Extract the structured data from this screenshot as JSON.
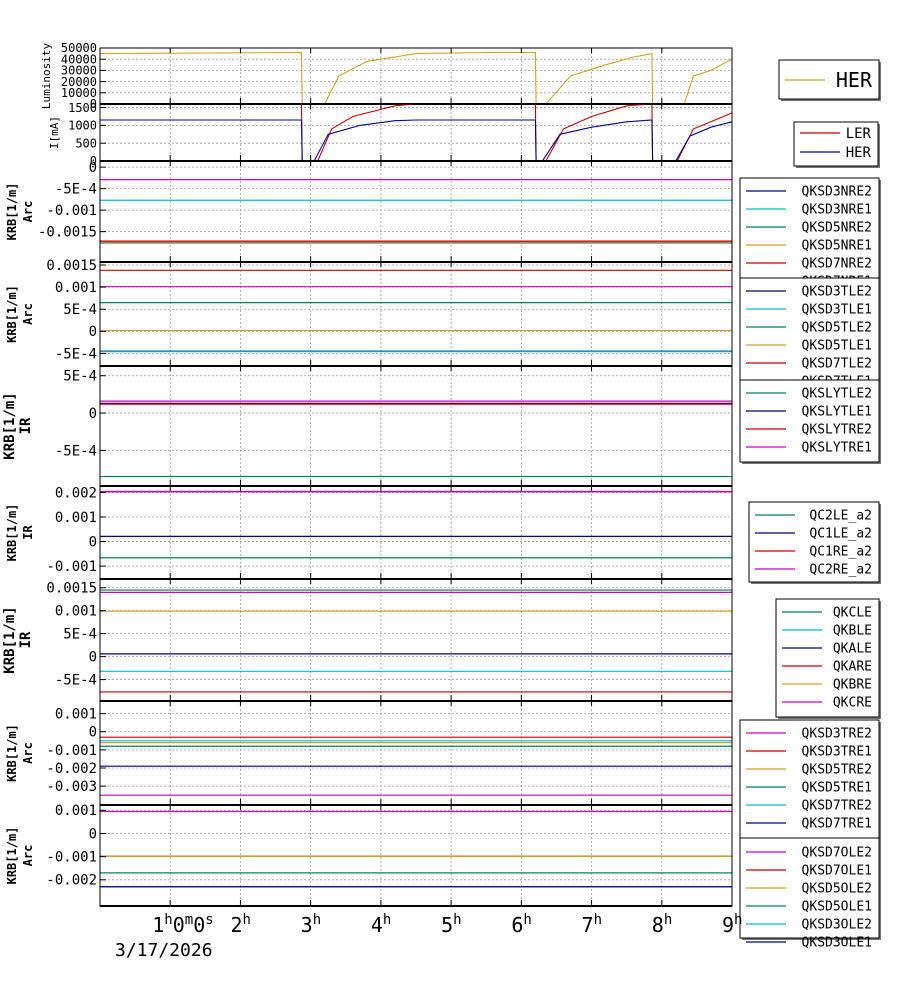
{
  "chart_data": [
    {
      "type": "line",
      "ylabel": [
        "Luminosity"
      ],
      "ylim": [
        0,
        50000
      ],
      "yticks": [
        "50000",
        "40000",
        "30000",
        "20000",
        "10000",
        "0"
      ],
      "yticks_values": [
        50000,
        40000,
        30000,
        20000,
        10000,
        0
      ],
      "legend": "right",
      "series": [
        {
          "name": "HER",
          "color": "#d4a017",
          "points": [
            [
              0,
              45000
            ],
            [
              2.87,
              46000
            ],
            [
              2.88,
              0
            ],
            [
              3.2,
              0
            ],
            [
              3.4,
              25000
            ],
            [
              3.8,
              38000
            ],
            [
              4.5,
              45000
            ],
            [
              5.5,
              46000
            ],
            [
              6.2,
              46000
            ],
            [
              6.21,
              0
            ],
            [
              6.35,
              0
            ],
            [
              6.7,
              25000
            ],
            [
              7.2,
              35000
            ],
            [
              7.6,
              42000
            ],
            [
              7.86,
              45000
            ],
            [
              7.87,
              0
            ],
            [
              8.32,
              0
            ],
            [
              8.45,
              25000
            ],
            [
              8.7,
              30000
            ],
            [
              9,
              40000
            ]
          ]
        }
      ]
    },
    {
      "type": "line",
      "ylabel": [
        "I[mA]"
      ],
      "ylim": [
        0,
        1600
      ],
      "yticks": [
        "1500",
        "1000",
        "500",
        "0"
      ],
      "yticks_values": [
        1500,
        1000,
        500,
        0
      ],
      "legend": "right",
      "series": [
        {
          "name": "LER",
          "color": "#cc0000",
          "points": [
            [
              0,
              1600
            ],
            [
              2.87,
              1600
            ],
            [
              2.88,
              0
            ],
            [
              3.1,
              0
            ],
            [
              3.3,
              900
            ],
            [
              3.6,
              1250
            ],
            [
              4.2,
              1550
            ],
            [
              4.5,
              1600
            ],
            [
              6.2,
              1600
            ],
            [
              6.21,
              0
            ],
            [
              6.35,
              0
            ],
            [
              6.6,
              900
            ],
            [
              7.0,
              1250
            ],
            [
              7.5,
              1550
            ],
            [
              7.86,
              1600
            ],
            [
              7.87,
              0
            ],
            [
              8.22,
              0
            ],
            [
              8.45,
              900
            ],
            [
              8.7,
              1100
            ],
            [
              9,
              1350
            ]
          ]
        },
        {
          "name": "HER",
          "color": "#000099",
          "points": [
            [
              0,
              1150
            ],
            [
              2.87,
              1150
            ],
            [
              2.88,
              0
            ],
            [
              3.05,
              0
            ],
            [
              3.25,
              750
            ],
            [
              3.7,
              1000
            ],
            [
              4.2,
              1130
            ],
            [
              4.5,
              1150
            ],
            [
              6.2,
              1150
            ],
            [
              6.21,
              0
            ],
            [
              6.3,
              0
            ],
            [
              6.55,
              750
            ],
            [
              7.0,
              950
            ],
            [
              7.5,
              1100
            ],
            [
              7.86,
              1150
            ],
            [
              7.87,
              0
            ],
            [
              8.2,
              0
            ],
            [
              8.4,
              700
            ],
            [
              8.7,
              950
            ],
            [
              9,
              1100
            ]
          ]
        }
      ]
    },
    {
      "type": "line",
      "ylabel": [
        "KRB[1/m]",
        "Arc"
      ],
      "ylim": [
        -0.00195,
        5e-05
      ],
      "yticks": [
        "0",
        "-5E-4",
        "-0.001",
        "-0.0015"
      ],
      "yticks_values": [
        0,
        -0.0005,
        -0.001,
        -0.0015
      ],
      "legend": "right",
      "series": [
        {
          "name": "QKSD3NRE2",
          "color": "#000080",
          "value": -0.00176
        },
        {
          "name": "QKSD3NRE1",
          "color": "#00bcd4",
          "value": -0.00077
        },
        {
          "name": "QKSD5NRE2",
          "color": "#008060",
          "value": -0.00175
        },
        {
          "name": "QKSD5NRE1",
          "color": "#d4a017",
          "value": -0.00174
        },
        {
          "name": "QKSD7NRE2",
          "color": "#cc0000",
          "value": -0.00172
        },
        {
          "name": "QKSD7NRE1",
          "color": "#cc00cc",
          "value": -0.00029
        }
      ]
    },
    {
      "type": "line",
      "ylabel": [
        "KRB[1/m]",
        "Arc"
      ],
      "ylim": [
        -0.00058,
        0.0015
      ],
      "yticks": [
        "0.0015",
        "0.001",
        "5E-4",
        "0",
        "-5E-4"
      ],
      "yticks_values": [
        0.0015,
        0.001,
        0.0005,
        0,
        -0.0005
      ],
      "legend": "right",
      "series": [
        {
          "name": "QKSD3TLE2",
          "color": "#000080",
          "value": -0.00045
        },
        {
          "name": "QKSD3TLE1",
          "color": "#00bcd4",
          "value": -0.00046
        },
        {
          "name": "QKSD5TLE2",
          "color": "#008060",
          "value": 0.00065
        },
        {
          "name": "QKSD5TLE1",
          "color": "#d4a017",
          "value": 2e-05
        },
        {
          "name": "QKSD7TLE2",
          "color": "#cc0000",
          "value": 0.00138
        },
        {
          "name": "QKSD7TLE1",
          "color": "#cc00cc",
          "value": 0.00101
        }
      ]
    },
    {
      "type": "line",
      "ylabel": [
        "KRB[1/m]",
        "IR"
      ],
      "ylim": [
        -0.00087,
        0.00055
      ],
      "yticks": [
        "5E-4",
        "0",
        "-5E-4"
      ],
      "yticks_values": [
        0.0005,
        0,
        -0.0005
      ],
      "legend": "right",
      "series": [
        {
          "name": "QKSLYTLE2",
          "color": "#008060",
          "value": -0.00085
        },
        {
          "name": "QKSLYTLE1",
          "color": "#000080",
          "value": 0.00013
        },
        {
          "name": "QKSLYTRE2",
          "color": "#cc0000",
          "value": 0.00012
        },
        {
          "name": "QKSLYTRE1",
          "color": "#cc00cc",
          "value": 0.00016
        }
      ]
    },
    {
      "type": "line",
      "ylabel": [
        "KRB[1/m]",
        "IR"
      ],
      "ylim": [
        -0.0012,
        0.0021
      ],
      "yticks": [
        "0.002",
        "0.001",
        "0",
        "-0.001"
      ],
      "yticks_values": [
        0.002,
        0.001,
        0,
        -0.001
      ],
      "legend": "right",
      "series": [
        {
          "name": "QC2LE_a2",
          "color": "#008060",
          "value": -0.00066
        },
        {
          "name": "QC1LE_a2",
          "color": "#000080",
          "value": 0.00021
        },
        {
          "name": "QC1RE_a2",
          "color": "#cc0000",
          "value": 0.00204
        },
        {
          "name": "QC2RE_a2",
          "color": "#cc00cc",
          "value": 0.00203
        }
      ]
    },
    {
      "type": "line",
      "ylabel": [
        "KRB[1/m]",
        "IR"
      ],
      "ylim": [
        -0.00088,
        0.00156
      ],
      "yticks": [
        "0.0015",
        "0.001",
        "5E-4",
        "0",
        "-5E-4"
      ],
      "yticks_values": [
        0.0015,
        0.001,
        0.0005,
        0,
        -0.0005
      ],
      "legend": "right",
      "series": [
        {
          "name": "QKCLE",
          "color": "#008060",
          "value": 0.00145
        },
        {
          "name": "QKBLE",
          "color": "#00bcd4",
          "value": -0.00032
        },
        {
          "name": "QKALE",
          "color": "#000080",
          "value": 6e-05
        },
        {
          "name": "QKARE",
          "color": "#cc0000",
          "value": -0.00077
        },
        {
          "name": "QKBRE",
          "color": "#d4a017",
          "value": 0.00099
        },
        {
          "name": "QKCRE",
          "color": "#cc00cc",
          "value": 0.0014
        }
      ]
    },
    {
      "type": "line",
      "ylabel": [
        "KRB[1/m]",
        "Arc"
      ],
      "ylim": [
        -0.0036,
        0.0012
      ],
      "yticks": [
        "0.001",
        "0",
        "-0.001",
        "-0.002",
        "-0.003"
      ],
      "yticks_values": [
        0.001,
        0,
        -0.001,
        -0.002,
        -0.003
      ],
      "legend": "right",
      "series": [
        {
          "name": "QKSD3TRE2",
          "color": "#cc00cc",
          "value": -0.0035
        },
        {
          "name": "QKSD3TRE1",
          "color": "#cc0000",
          "value": -0.0003
        },
        {
          "name": "QKSD5TRE2",
          "color": "#d4a017",
          "value": -0.0006
        },
        {
          "name": "QKSD5TRE1",
          "color": "#008060",
          "value": -0.0008
        },
        {
          "name": "QKSD7TRE2",
          "color": "#00bcd4",
          "value": -0.0005
        },
        {
          "name": "QKSD7TRE1",
          "color": "#000080",
          "value": -0.0019
        }
      ]
    },
    {
      "type": "line",
      "ylabel": [
        "KRB[1/m]",
        "Arc"
      ],
      "ylim": [
        -0.0027,
        0.0011
      ],
      "yticks": [
        "0.001",
        "0",
        "-0.001",
        "-0.002"
      ],
      "yticks_values": [
        0.001,
        0,
        -0.001,
        -0.002
      ],
      "legend": "right",
      "series": [
        {
          "name": "QKSD7OLE2",
          "color": "#cc00cc",
          "value": 0.00095
        },
        {
          "name": "QKSD7OLE1",
          "color": "#cc0000",
          "value": -0.00098
        },
        {
          "name": "QKSD5OLE2",
          "color": "#d4a017",
          "value": -0.00099
        },
        {
          "name": "QKSD5OLE1",
          "color": "#008060",
          "value": -0.0017
        },
        {
          "name": "QKSD3OLE2",
          "color": "#00bcd4",
          "value": -0.0023
        },
        {
          "name": "QKSD3OLE1",
          "color": "#000080",
          "value": -0.0023
        }
      ]
    }
  ],
  "x_axis": {
    "xlim": [
      0,
      9
    ],
    "tick_values": [
      1,
      2,
      3,
      4,
      5,
      6,
      7,
      8,
      9
    ],
    "first_label": {
      "value": 1,
      "main": "1",
      "sup1": "h",
      "mid": "0",
      "sup2": "m",
      "end": "0",
      "sup3": "s"
    },
    "labels": [
      {
        "value": 2,
        "main": "2",
        "sup": "h"
      },
      {
        "value": 3,
        "main": "3",
        "sup": "h"
      },
      {
        "value": 4,
        "main": "4",
        "sup": "h"
      },
      {
        "value": 5,
        "main": "5",
        "sup": "h"
      },
      {
        "value": 6,
        "main": "6",
        "sup": "h"
      },
      {
        "value": 7,
        "main": "7",
        "sup": "h"
      },
      {
        "value": 8,
        "main": "8",
        "sup": "h"
      },
      {
        "value": 9,
        "main": "9",
        "sup": "h"
      }
    ],
    "date": "3/17/2026"
  }
}
